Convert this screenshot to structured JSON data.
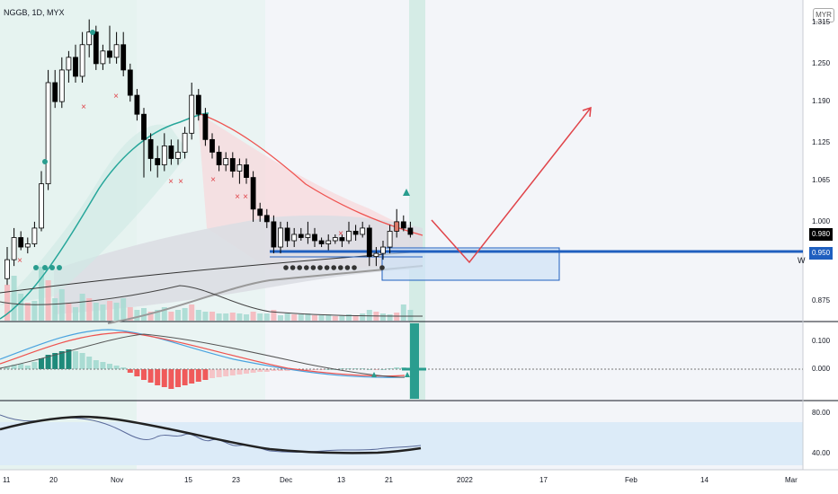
{
  "header": {
    "symbol_title": "NGGB, 1D, MYX",
    "currency_badge": "MYR"
  },
  "colors": {
    "up": "#ffffff",
    "down": "#000000",
    "teal": "#26a69a",
    "red_line": "#ef5350",
    "blue_line": "#1f5fbf",
    "pale_red": "#f8d7da",
    "pale_green": "#e2f3ee",
    "grey_fill": "#dcdee3",
    "red_hist": "#f05a5a",
    "teal_hist": "#2a9d8f",
    "pale_blue": "#dcebf8"
  },
  "chart_data": [
    {
      "type": "candlestick",
      "x_tick_labels": [
        "11",
        "20",
        "Nov",
        "15",
        "23",
        "Dec",
        "13",
        "21",
        "2022",
        "17",
        "Feb",
        "14",
        "Mar"
      ],
      "y_tick_labels": [
        "1.315",
        "1.250",
        "1.190",
        "1.125",
        "1.065",
        "1.000",
        "0.875"
      ],
      "ylim": [
        0.845,
        1.345
      ],
      "price_labels": [
        {
          "text": "0.980",
          "value": 0.98,
          "bg": "#000000"
        },
        {
          "text": "0.950",
          "value": 0.95,
          "bg": "#1f5fbf"
        }
      ],
      "side_letter": "W",
      "candles": [
        [
          0.91,
          0.94,
          0.9,
          0.96
        ],
        [
          0.94,
          0.975,
          0.93,
          0.99
        ],
        [
          0.975,
          0.96,
          0.955,
          0.985
        ],
        [
          0.96,
          0.965,
          0.95,
          0.975
        ],
        [
          0.965,
          0.99,
          0.96,
          1.0
        ],
        [
          0.99,
          1.06,
          0.985,
          1.08
        ],
        [
          1.06,
          1.22,
          1.05,
          1.24
        ],
        [
          1.22,
          1.19,
          1.18,
          1.24
        ],
        [
          1.19,
          1.24,
          1.18,
          1.26
        ],
        [
          1.24,
          1.26,
          1.22,
          1.27
        ],
        [
          1.26,
          1.23,
          1.22,
          1.28
        ],
        [
          1.23,
          1.28,
          1.22,
          1.3
        ],
        [
          1.28,
          1.3,
          1.26,
          1.32
        ],
        [
          1.3,
          1.25,
          1.24,
          1.31
        ],
        [
          1.25,
          1.27,
          1.24,
          1.28
        ],
        [
          1.27,
          1.26,
          1.25,
          1.31
        ],
        [
          1.26,
          1.28,
          1.25,
          1.3
        ],
        [
          1.28,
          1.24,
          1.23,
          1.3
        ],
        [
          1.24,
          1.2,
          1.19,
          1.25
        ],
        [
          1.2,
          1.17,
          1.16,
          1.21
        ],
        [
          1.17,
          1.13,
          1.07,
          1.18
        ],
        [
          1.13,
          1.1,
          1.08,
          1.14
        ],
        [
          1.1,
          1.09,
          1.07,
          1.12
        ],
        [
          1.09,
          1.12,
          1.08,
          1.14
        ],
        [
          1.12,
          1.1,
          1.09,
          1.13
        ],
        [
          1.1,
          1.11,
          1.09,
          1.13
        ],
        [
          1.11,
          1.14,
          1.1,
          1.15
        ],
        [
          1.14,
          1.2,
          1.13,
          1.22
        ],
        [
          1.2,
          1.17,
          1.16,
          1.21
        ],
        [
          1.17,
          1.13,
          1.12,
          1.18
        ],
        [
          1.13,
          1.11,
          1.1,
          1.14
        ],
        [
          1.11,
          1.09,
          1.08,
          1.12
        ],
        [
          1.09,
          1.1,
          1.08,
          1.11
        ],
        [
          1.1,
          1.08,
          1.07,
          1.11
        ],
        [
          1.08,
          1.09,
          1.06,
          1.1
        ],
        [
          1.09,
          1.07,
          1.06,
          1.1
        ],
        [
          1.07,
          1.02,
          1.0,
          1.08
        ],
        [
          1.02,
          1.01,
          1.0,
          1.03
        ],
        [
          1.01,
          1.0,
          0.99,
          1.02
        ],
        [
          1.0,
          0.96,
          0.95,
          1.01
        ],
        [
          0.96,
          0.99,
          0.95,
          1.0
        ],
        [
          0.99,
          0.97,
          0.96,
          1.0
        ],
        [
          0.97,
          0.98,
          0.96,
          0.99
        ],
        [
          0.98,
          0.975,
          0.97,
          0.99
        ],
        [
          0.975,
          0.98,
          0.965,
          1.0
        ],
        [
          0.98,
          0.97,
          0.96,
          0.99
        ],
        [
          0.97,
          0.965,
          0.96,
          0.975
        ],
        [
          0.965,
          0.97,
          0.955,
          0.98
        ],
        [
          0.97,
          0.975,
          0.965,
          0.98
        ],
        [
          0.975,
          0.97,
          0.96,
          0.98
        ],
        [
          0.97,
          0.985,
          0.965,
          1.0
        ],
        [
          0.985,
          0.98,
          0.97,
          0.995
        ],
        [
          0.98,
          0.99,
          0.975,
          1.0
        ],
        [
          0.99,
          0.945,
          0.93,
          0.995
        ],
        [
          0.945,
          0.95,
          0.93,
          0.96
        ],
        [
          0.95,
          0.96,
          0.94,
          0.97
        ],
        [
          0.96,
          0.985,
          0.95,
          0.995
        ],
        [
          0.985,
          1.0,
          0.975,
          1.02
        ],
        [
          1.0,
          0.99,
          0.985,
          1.01
        ],
        [
          0.99,
          0.98,
          0.975,
          1.0
        ]
      ]
    },
    {
      "type": "histogram",
      "y_tick_labels": [
        "0.100",
        "0.000"
      ]
    },
    {
      "type": "line",
      "y_tick_labels": [
        "80.00",
        "40.00"
      ]
    }
  ]
}
